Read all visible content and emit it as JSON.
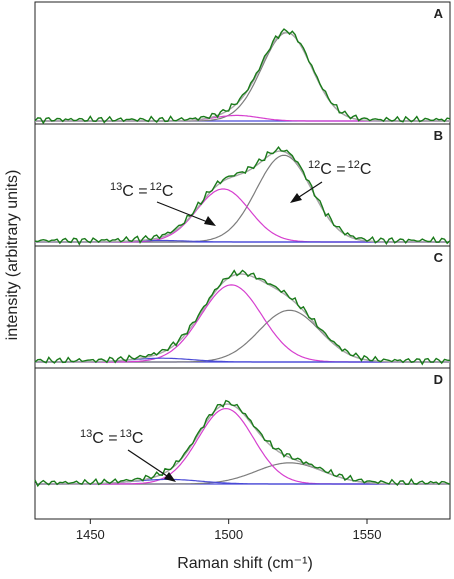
{
  "colors": {
    "measured": "#1a7a1a",
    "fit_sum": "#a8a8a8",
    "c12_c12": "#7d7d7d",
    "c13_c12": "#d63fcf",
    "c13_c13": "#4a4ad6",
    "baseline": "#4a4ad6"
  },
  "chart_data": {
    "type": "line",
    "xlabel": "Raman shift (cm⁻¹)",
    "ylabel": "intensity (arbitrary units)",
    "xlim": [
      1430,
      1580
    ],
    "xticks": [
      "1450",
      "1500",
      "1550"
    ],
    "xtick_values": [
      1450,
      1500,
      1550
    ],
    "legend": "none",
    "grid": false,
    "panels": [
      {
        "label": "A",
        "peaks": [
          {
            "component": "12C=12C",
            "center": 1521,
            "height": 0.95,
            "width": 9
          },
          {
            "component": "13C=12C",
            "center": 1503,
            "height": 0.06,
            "width": 8
          }
        ],
        "annotations": []
      },
      {
        "label": "B",
        "peaks": [
          {
            "component": "12C=12C",
            "center": 1520,
            "height": 0.85,
            "width": 10
          },
          {
            "component": "13C=12C",
            "center": 1498,
            "height": 0.52,
            "width": 9.5
          },
          {
            "component": "13C=13C",
            "center": 1475,
            "height": 0.015,
            "width": 10
          }
        ],
        "annotations": [
          {
            "text": "13C = 12C",
            "target": "13C=12C"
          },
          {
            "text": "12C = 12C",
            "target": "12C=12C"
          }
        ]
      },
      {
        "label": "C",
        "peaks": [
          {
            "component": "12C=12C",
            "center": 1522,
            "height": 0.55,
            "width": 11
          },
          {
            "component": "13C=12C",
            "center": 1501,
            "height": 0.82,
            "width": 11
          },
          {
            "component": "13C=13C",
            "center": 1476,
            "height": 0.04,
            "width": 11
          }
        ],
        "annotations": []
      },
      {
        "label": "D",
        "peaks": [
          {
            "component": "12C=12C",
            "center": 1522,
            "height": 0.23,
            "width": 12
          },
          {
            "component": "13C=12C",
            "center": 1499,
            "height": 0.82,
            "width": 10
          },
          {
            "component": "13C=13C",
            "center": 1478,
            "height": 0.05,
            "width": 12
          }
        ],
        "annotations": [
          {
            "text": "13C = 13C",
            "target": "13C=13C"
          }
        ]
      }
    ]
  },
  "annotations": {
    "b_left": {
      "iso1": "13",
      "el1": "C =",
      "iso2": "12",
      "el2": "C"
    },
    "b_right": {
      "iso1": "12",
      "el1": "C =",
      "iso2": "12",
      "el2": "C"
    },
    "d_left": {
      "iso1": "13",
      "el1": "C =",
      "iso2": "13",
      "el2": "C"
    }
  }
}
